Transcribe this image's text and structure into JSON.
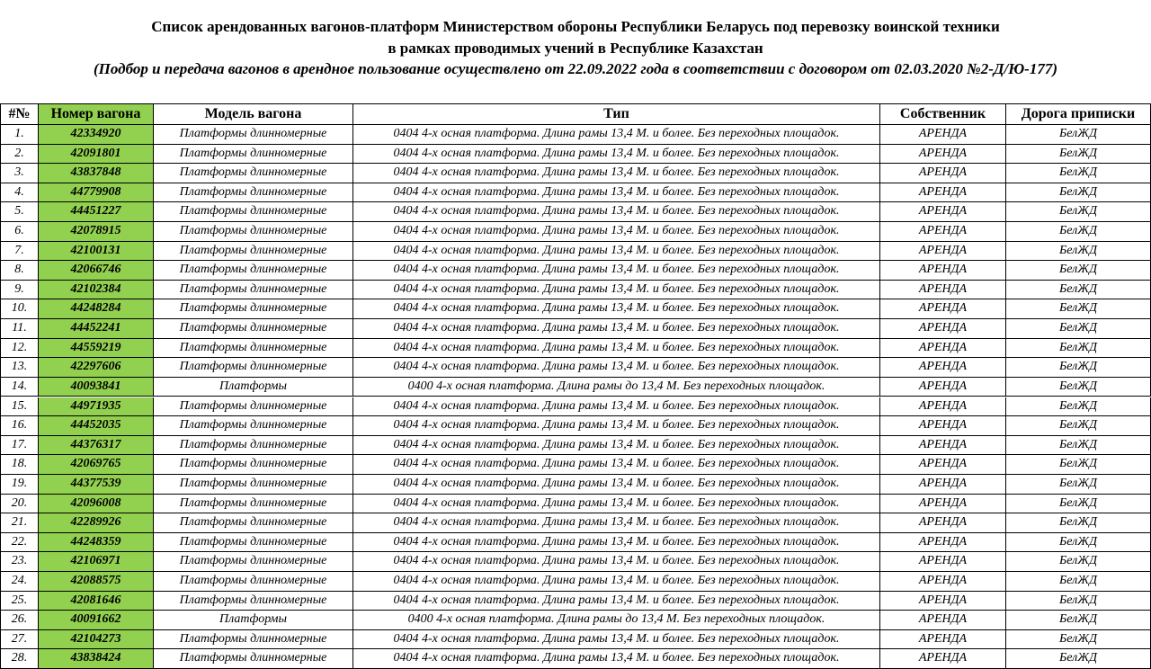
{
  "header": {
    "title_line1": "Список арендованных вагонов-платформ Министерством обороны Республики Беларусь под перевозку воинской техники",
    "title_line2": "в рамках проводимых учений в Республике Казахстан",
    "subtitle": "(Подбор и передача вагонов в арендное пользование осуществлено от 22.09.2022 года в соответствии с договором от 02.03.2020 №2-Д/Ю-177)"
  },
  "table": {
    "columns": [
      "#№",
      "Номер вагона",
      "Модель вагона",
      "Тип",
      "Собственник",
      "Дорога приписки"
    ],
    "rows": [
      [
        "1.",
        "42334920",
        "Платформы длинномерные",
        "0404 4-х осная платформа. Длина рамы 13,4 М. и более. Без переходных площадок.",
        "АРЕНДА",
        "БелЖД"
      ],
      [
        "2.",
        "42091801",
        "Платформы длинномерные",
        "0404 4-х осная платформа. Длина рамы 13,4 М. и более. Без переходных площадок.",
        "АРЕНДА",
        "БелЖД"
      ],
      [
        "3.",
        "43837848",
        "Платформы длинномерные",
        "0404 4-х осная платформа. Длина рамы 13,4 М. и более. Без переходных площадок.",
        "АРЕНДА",
        "БелЖД"
      ],
      [
        "4.",
        "44779908",
        "Платформы длинномерные",
        "0404 4-х осная платформа. Длина рамы 13,4 М. и более. Без переходных площадок.",
        "АРЕНДА",
        "БелЖД"
      ],
      [
        "5.",
        "44451227",
        "Платформы длинномерные",
        "0404 4-х осная платформа. Длина рамы 13,4 М. и более. Без переходных площадок.",
        "АРЕНДА",
        "БелЖД"
      ],
      [
        "6.",
        "42078915",
        "Платформы длинномерные",
        "0404 4-х осная платформа. Длина рамы 13,4 М. и более. Без переходных площадок.",
        "АРЕНДА",
        "БелЖД"
      ],
      [
        "7.",
        "42100131",
        "Платформы длинномерные",
        "0404 4-х осная платформа. Длина рамы 13,4 М. и более. Без переходных площадок.",
        "АРЕНДА",
        "БелЖД"
      ],
      [
        "8.",
        "42066746",
        "Платформы длинномерные",
        "0404 4-х осная платформа. Длина рамы 13,4 М. и более. Без переходных площадок.",
        "АРЕНДА",
        "БелЖД"
      ],
      [
        "9.",
        "42102384",
        "Платформы длинномерные",
        "0404 4-х осная платформа. Длина рамы 13,4 М. и более. Без переходных площадок.",
        "АРЕНДА",
        "БелЖД"
      ],
      [
        "10.",
        "44248284",
        "Платформы длинномерные",
        "0404 4-х осная платформа. Длина рамы 13,4 М. и более. Без переходных площадок.",
        "АРЕНДА",
        "БелЖД"
      ],
      [
        "11.",
        "44452241",
        "Платформы длинномерные",
        "0404 4-х осная платформа. Длина рамы 13,4 М. и более. Без переходных площадок.",
        "АРЕНДА",
        "БелЖД"
      ],
      [
        "12.",
        "44559219",
        "Платформы длинномерные",
        "0404 4-х осная платформа. Длина рамы 13,4 М. и более. Без переходных площадок.",
        "АРЕНДА",
        "БелЖД"
      ],
      [
        "13.",
        "42297606",
        "Платформы длинномерные",
        "0404 4-х осная платформа. Длина рамы 13,4 М. и более. Без переходных площадок.",
        "АРЕНДА",
        "БелЖД"
      ],
      [
        "14.",
        "40093841",
        "Платформы",
        "0400 4-х осная платформа. Длина рамы до 13,4 М. Без переходных площадок.",
        "АРЕНДА",
        "БелЖД"
      ],
      [
        "15.",
        "44971935",
        "Платформы длинномерные",
        "0404 4-х осная платформа. Длина рамы 13,4 М. и более. Без переходных площадок.",
        "АРЕНДА",
        "БелЖД"
      ],
      [
        "16.",
        "44452035",
        "Платформы длинномерные",
        "0404 4-х осная платформа. Длина рамы 13,4 М. и более. Без переходных площадок.",
        "АРЕНДА",
        "БелЖД"
      ],
      [
        "17.",
        "44376317",
        "Платформы длинномерные",
        "0404 4-х осная платформа. Длина рамы 13,4 М. и более. Без переходных площадок.",
        "АРЕНДА",
        "БелЖД"
      ],
      [
        "18.",
        "42069765",
        "Платформы длинномерные",
        "0404 4-х осная платформа. Длина рамы 13,4 М. и более. Без переходных площадок.",
        "АРЕНДА",
        "БелЖД"
      ],
      [
        "19.",
        "44377539",
        "Платформы длинномерные",
        "0404 4-х осная платформа. Длина рамы 13,4 М. и более. Без переходных площадок.",
        "АРЕНДА",
        "БелЖД"
      ],
      [
        "20.",
        "42096008",
        "Платформы длинномерные",
        "0404 4-х осная платформа. Длина рамы 13,4 М. и более. Без переходных площадок.",
        "АРЕНДА",
        "БелЖД"
      ],
      [
        "21.",
        "42289926",
        "Платформы длинномерные",
        "0404 4-х осная платформа. Длина рамы 13,4 М. и более. Без переходных площадок.",
        "АРЕНДА",
        "БелЖД"
      ],
      [
        "22.",
        "44248359",
        "Платформы длинномерные",
        "0404 4-х осная платформа. Длина рамы 13,4 М. и более. Без переходных площадок.",
        "АРЕНДА",
        "БелЖД"
      ],
      [
        "23.",
        "42106971",
        "Платформы длинномерные",
        "0404 4-х осная платформа. Длина рамы 13,4 М. и более. Без переходных площадок.",
        "АРЕНДА",
        "БелЖД"
      ],
      [
        "24.",
        "42088575",
        "Платформы длинномерные",
        "0404 4-х осная платформа. Длина рамы 13,4 М. и более. Без переходных площадок.",
        "АРЕНДА",
        "БелЖД"
      ],
      [
        "25.",
        "42081646",
        "Платформы длинномерные",
        "0404 4-х осная платформа. Длина рамы 13,4 М. и более. Без переходных площадок.",
        "АРЕНДА",
        "БелЖД"
      ],
      [
        "26.",
        "40091662",
        "Платформы",
        "0400 4-х осная платформа. Длина рамы до 13,4 М. Без переходных площадок.",
        "АРЕНДА",
        "БелЖД"
      ],
      [
        "27.",
        "42104273",
        "Платформы длинномерные",
        "0404 4-х осная платформа. Длина рамы 13,4 М. и более. Без переходных площадок.",
        "АРЕНДА",
        "БелЖД"
      ],
      [
        "28.",
        "43838424",
        "Платформы длинномерные",
        "0404 4-х осная платформа. Длина рамы 13,4 М. и более. Без переходных площадок.",
        "АРЕНДА",
        "БелЖД"
      ]
    ]
  }
}
